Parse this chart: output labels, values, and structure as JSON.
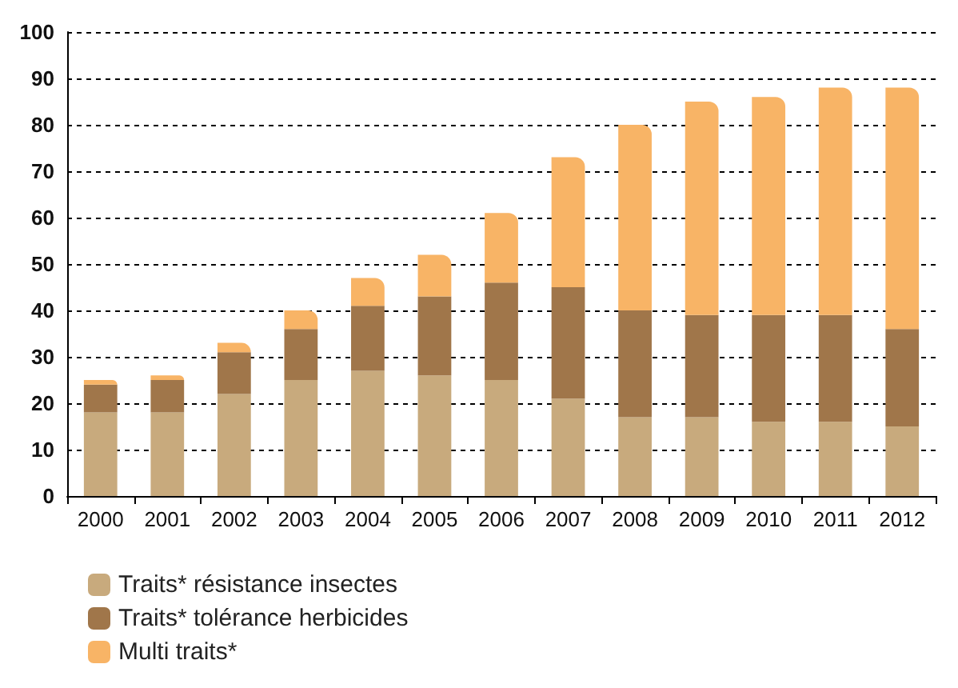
{
  "chart_data": {
    "type": "bar",
    "stacked": true,
    "categories": [
      "2000",
      "2001",
      "2002",
      "2003",
      "2004",
      "2005",
      "2006",
      "2007",
      "2008",
      "2009",
      "2010",
      "2011",
      "2012"
    ],
    "series": [
      {
        "name": "Traits* résistance insectes",
        "color": "#c8aa7d",
        "values": [
          18,
          18,
          22,
          25,
          27,
          26,
          25,
          21,
          17,
          17,
          16,
          16,
          15
        ]
      },
      {
        "name": "Traits* tolérance herbicides",
        "color": "#a0764a",
        "values": [
          6,
          7,
          9,
          11,
          14,
          17,
          21,
          24,
          23,
          22,
          23,
          23,
          21
        ]
      },
      {
        "name": "Multi traits*",
        "color": "#f8b466",
        "values": [
          1,
          1,
          2,
          4,
          6,
          9,
          15,
          28,
          40,
          46,
          47,
          49,
          52
        ]
      }
    ],
    "ylim": [
      0,
      100
    ],
    "yticks": [
      0,
      10,
      20,
      30,
      40,
      50,
      60,
      70,
      80,
      90,
      100
    ],
    "grid": "y",
    "legend": "bottom left"
  }
}
